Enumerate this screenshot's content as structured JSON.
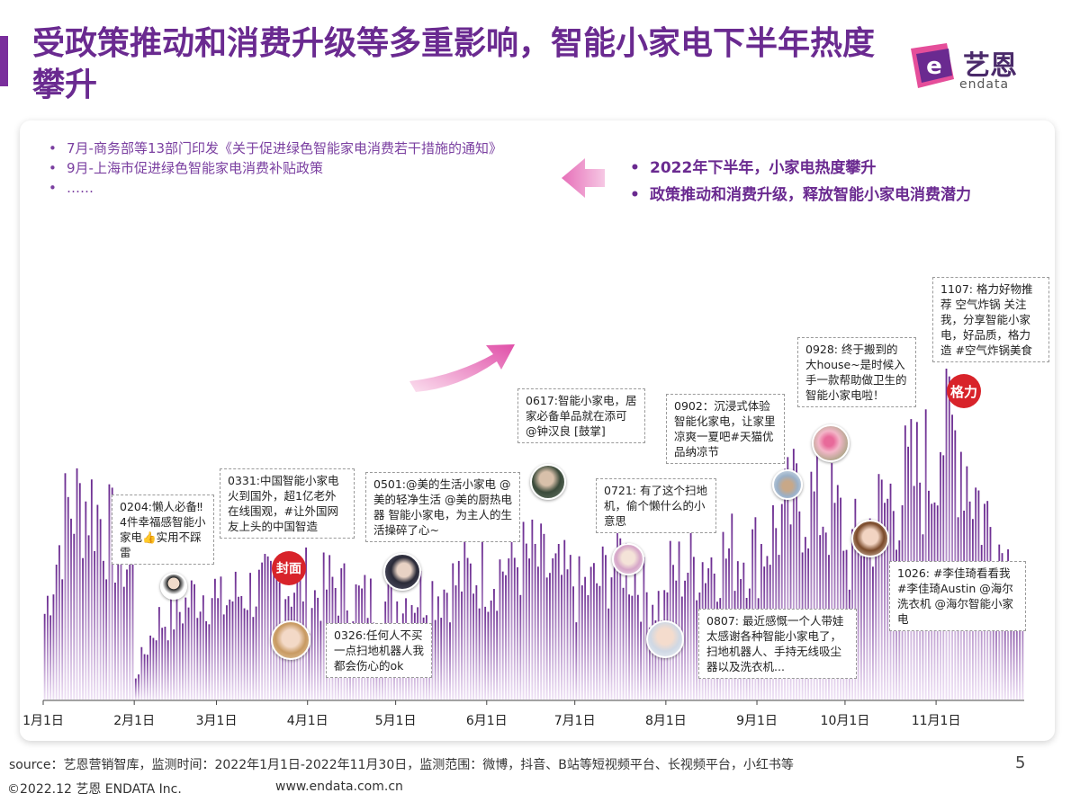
{
  "title": "受政策推动和消费升级等多重影响，智能小家电下半年热度攀升",
  "logo": {
    "text": "艺恩",
    "sub": "endata",
    "colors": [
      "#e23b8f",
      "#6a2a90"
    ]
  },
  "policy_points": [
    "7月-商务部等13部门印发《关于促进绿色智能家电消费若干措施的通知》",
    "9月-上海市促进绿色智能家电消费补贴政策",
    "……"
  ],
  "highlights": [
    "2022年下半年，小家电热度攀升",
    "政策推动和消费升级，释放智能小家电消费潜力"
  ],
  "annotations": [
    {
      "id": "a0204",
      "text": "0204:懒人必备‼4件幸福感智能小家电👍实用不踩雷"
    },
    {
      "id": "a0331",
      "text": "0331:中国智能小家电火到国外，超1亿老外在线围观，#让外国网友上头的中国智造"
    },
    {
      "id": "a0326",
      "text": "0326:任何人不买一点扫地机器人我都会伤心的ok"
    },
    {
      "id": "a0501",
      "text": "0501:@美的生活小家电 @美的轻净生活 @美的厨热电器 智能小家电，为主人的生活操碎了心~"
    },
    {
      "id": "a0617",
      "text": "0617:智能小家电，居家必备单品就在添可@钟汉良 [鼓掌]"
    },
    {
      "id": "a0721",
      "text": "0721: 有了这个扫地机，偷个懒什么的小意思"
    },
    {
      "id": "a0807",
      "text": "0807: 最近感慨一个人带娃太感谢各种智能小家电了，扫地机器人、手持无线吸尘器以及洗衣机..."
    },
    {
      "id": "a0902",
      "text": "0902：沉浸式体验智能化家电，让家里凉爽一夏吧#天猫优品纳凉节"
    },
    {
      "id": "a0928",
      "text": "0928: 终于搬到的大house~是时候入手一款帮助做卫生的智能小家电啦！"
    },
    {
      "id": "a1026",
      "text": "1026: #李佳琦看看我#李佳琦Austin @海尔洗衣机 @海尔智能小家电"
    },
    {
      "id": "a1107",
      "text": "1107: 格力好物推荐 空气炸锅 关注我，分享智能小家电，好品质，格力造 #空气炸锅美食"
    }
  ],
  "badges": {
    "fengmian": "封面",
    "gree": "格力"
  },
  "chart_data": {
    "type": "bar",
    "title": "",
    "xlabel": "",
    "ylabel": "",
    "categories": [
      "1月1日",
      "2月1日",
      "3月1日",
      "4月1日",
      "5月1日",
      "6月1日",
      "7月1日",
      "8月1日",
      "9月1日",
      "10月1日",
      "11月1日"
    ],
    "x_range": [
      "2022-01-01",
      "2022-11-30"
    ],
    "series": [
      {
        "color_top": "#6a2a90",
        "color_bottom": "#e8d6f0",
        "monthly_anchor_values": [
          [
            0.28,
            0.62,
            0.65,
            0.52,
            0.4
          ],
          [
            0.08,
            0.25,
            0.28,
            0.35,
            0.35
          ],
          [
            0.3,
            0.35,
            0.36,
            0.37,
            0.38
          ],
          [
            0.32,
            0.38,
            0.33,
            0.32,
            0.3
          ],
          [
            0.32,
            0.35,
            0.36,
            0.4,
            0.42
          ],
          [
            0.4,
            0.45,
            0.46,
            0.4,
            0.38
          ],
          [
            0.35,
            0.38,
            0.48,
            0.35,
            0.3
          ],
          [
            0.4,
            0.44,
            0.46,
            0.48,
            0.48
          ],
          [
            0.48,
            0.58,
            0.66,
            0.62,
            0.56
          ],
          [
            0.46,
            0.56,
            0.66,
            0.72,
            0.78
          ],
          [
            0.9,
            0.84,
            0.62,
            0.48,
            0.34
          ]
        ],
        "note": ""
      }
    ],
    "y_scale": "relative heat index",
    "grid": false,
    "legend": "none"
  },
  "footer": {
    "source": "source：艺恩营销智库，监测时间：2022年1月1日-2022年11月30日，监测范围：微博，抖音、B站等短视频平台、长视频平台，小红书等",
    "page": "5",
    "copyright": "©2022.12 艺恩 ENDATA Inc.",
    "website": "www.endata.com.cn"
  }
}
